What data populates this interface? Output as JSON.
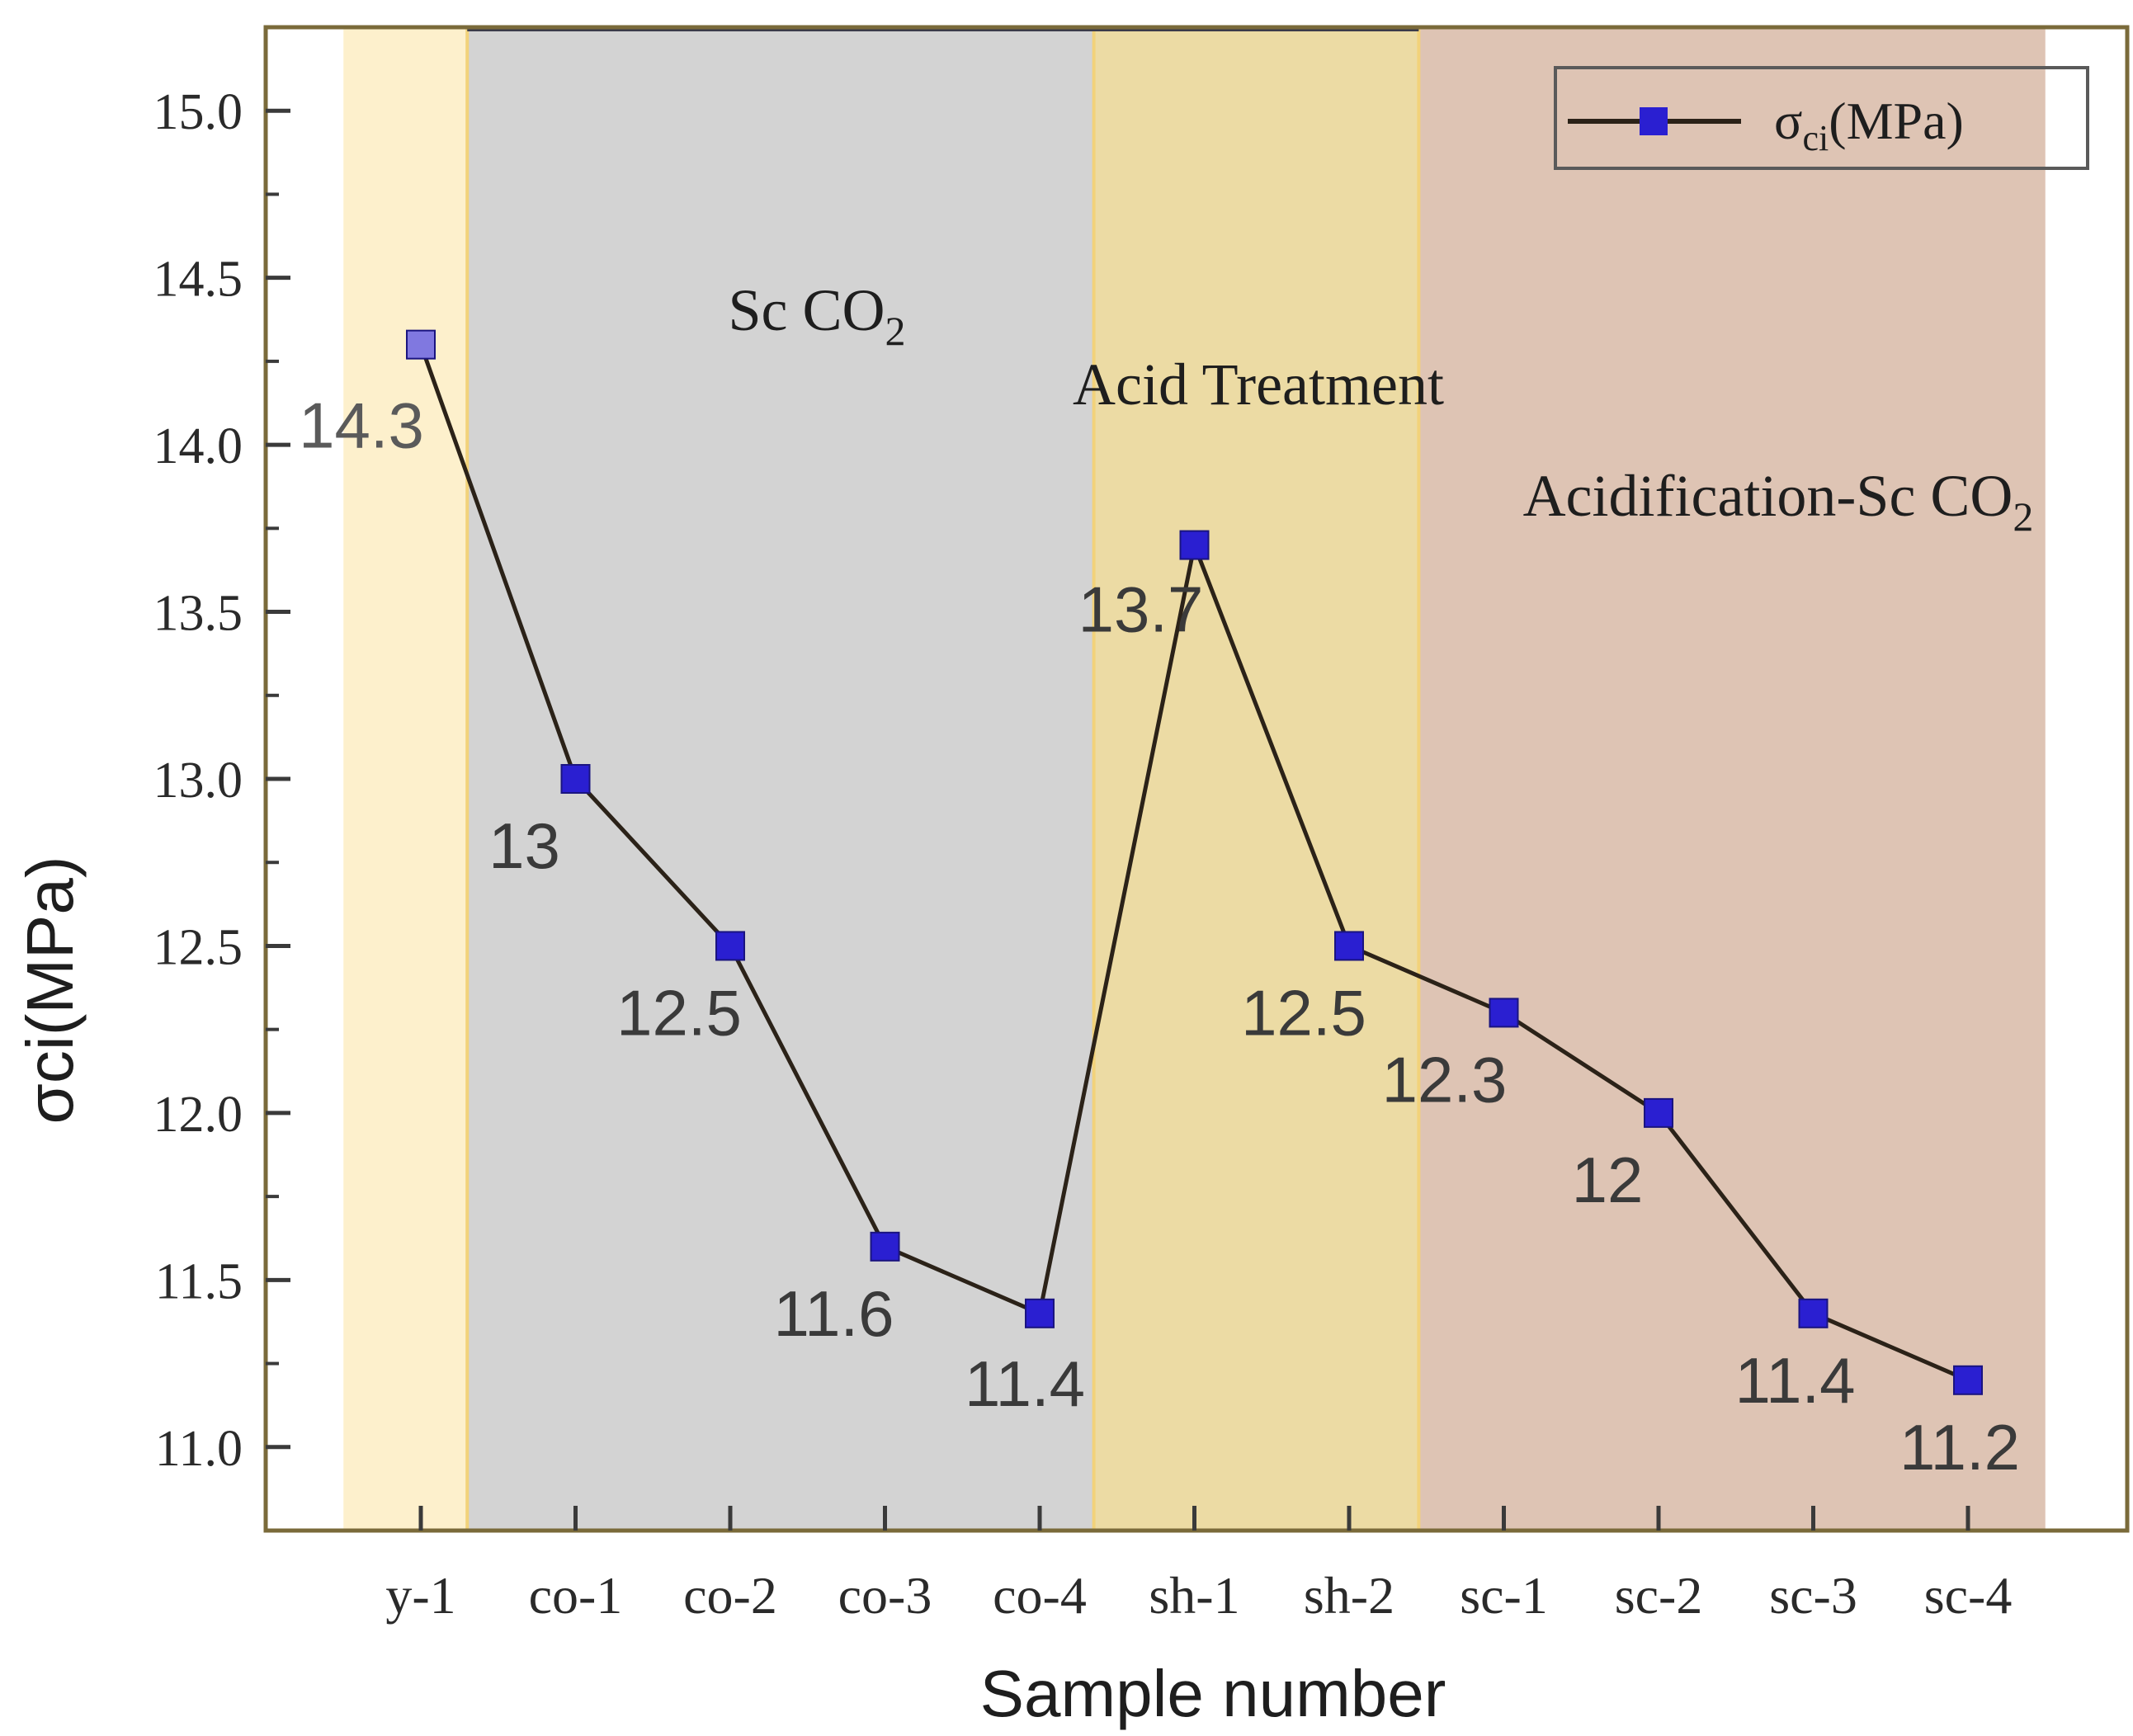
{
  "chart_data": {
    "type": "line",
    "title": "",
    "xlabel": "Sample number",
    "ylabel": "σci(MPa)",
    "categories": [
      "y-1",
      "co-1",
      "co-2",
      "co-3",
      "co-4",
      "sh-1",
      "sh-2",
      "sc-1",
      "sc-2",
      "sc-3",
      "sc-4"
    ],
    "series": [
      {
        "name": "σci(MPa)",
        "legend_main": "σ",
        "legend_sub": "ci",
        "legend_tail": "(MPa)",
        "values": [
          14.3,
          13,
          12.5,
          11.6,
          11.4,
          13.7,
          12.5,
          12.3,
          12,
          11.4,
          11.2
        ],
        "data_labels": [
          "14.3",
          "13",
          "12.5",
          "11.6",
          "11.4",
          "13.7",
          "12.5",
          "12.3",
          "12",
          "11.4",
          "11.2"
        ],
        "line_color": "#2b2218",
        "marker_color": "#2a1fd1",
        "first_marker_color": "#8078e0"
      }
    ],
    "ylim": [
      10.75,
      15.25
    ],
    "yticks": [
      "11.0",
      "11.5",
      "12.0",
      "12.5",
      "13.0",
      "13.5",
      "14.0",
      "14.5",
      "15.0"
    ],
    "grid": false,
    "legend_position": "top-right",
    "regions": [
      {
        "label": "",
        "label_sub": "",
        "from": -0.5,
        "to": 0.3,
        "color": "#fdf0cc"
      },
      {
        "label": "Sc CO",
        "label_sub": "2",
        "from": 0.3,
        "to": 4.35,
        "color": "#d3d3d3"
      },
      {
        "label": "Acid Treatment",
        "label_sub": "",
        "from": 4.35,
        "to": 6.45,
        "color": "#ecdba4"
      },
      {
        "label": "Acidification-Sc CO",
        "label_sub": "2",
        "from": 6.45,
        "to": 10.5,
        "color": "#dec4b4"
      }
    ]
  }
}
